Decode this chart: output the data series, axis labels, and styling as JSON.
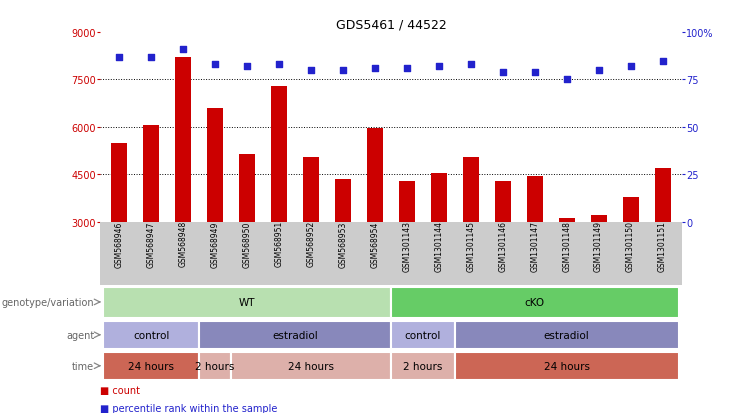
{
  "title": "GDS5461 / 44522",
  "samples": [
    "GSM568946",
    "GSM568947",
    "GSM568948",
    "GSM568949",
    "GSM568950",
    "GSM568951",
    "GSM568952",
    "GSM568953",
    "GSM568954",
    "GSM1301143",
    "GSM1301144",
    "GSM1301145",
    "GSM1301146",
    "GSM1301147",
    "GSM1301148",
    "GSM1301149",
    "GSM1301150",
    "GSM1301151"
  ],
  "counts": [
    5500,
    6050,
    8200,
    6600,
    5150,
    7300,
    5050,
    4350,
    5950,
    4300,
    4550,
    5050,
    4300,
    4450,
    3100,
    3220,
    3780,
    4700
  ],
  "percentiles": [
    87,
    87,
    91,
    83,
    82,
    83,
    80,
    80,
    81,
    81,
    82,
    83,
    79,
    79,
    75,
    80,
    82,
    85
  ],
  "bar_color": "#cc0000",
  "dot_color": "#2222cc",
  "ylim_left": [
    3000,
    9000
  ],
  "ylim_right": [
    0,
    100
  ],
  "yticks_left": [
    3000,
    4500,
    6000,
    7500,
    9000
  ],
  "yticks_right": [
    0,
    25,
    50,
    75,
    100
  ],
  "hlines": [
    4500,
    6000,
    7500
  ],
  "genotype_groups": [
    {
      "text": "WT",
      "start": 0,
      "end": 9,
      "color": "#b8e0b0"
    },
    {
      "text": "cKO",
      "start": 9,
      "end": 18,
      "color": "#66cc66"
    }
  ],
  "agent_groups": [
    {
      "text": "control",
      "start": 0,
      "end": 3,
      "color": "#b0b0dd"
    },
    {
      "text": "estradiol",
      "start": 3,
      "end": 9,
      "color": "#8888bb"
    },
    {
      "text": "control",
      "start": 9,
      "end": 11,
      "color": "#b0b0dd"
    },
    {
      "text": "estradiol",
      "start": 11,
      "end": 18,
      "color": "#8888bb"
    }
  ],
  "time_groups": [
    {
      "text": "24 hours",
      "start": 0,
      "end": 3,
      "color": "#cc6655"
    },
    {
      "text": "2 hours",
      "start": 3,
      "end": 4,
      "color": "#ddb0aa"
    },
    {
      "text": "24 hours",
      "start": 4,
      "end": 9,
      "color": "#ddb0aa"
    },
    {
      "text": "2 hours",
      "start": 9,
      "end": 11,
      "color": "#ddb0aa"
    },
    {
      "text": "24 hours",
      "start": 11,
      "end": 18,
      "color": "#cc6655"
    }
  ],
  "row_labels": [
    "genotype/variation",
    "agent",
    "time"
  ],
  "legend_items": [
    {
      "color": "#cc0000",
      "label": "count"
    },
    {
      "color": "#2222cc",
      "label": "percentile rank within the sample"
    }
  ],
  "tick_bg_color": "#cccccc",
  "bg_color": "#ffffff"
}
